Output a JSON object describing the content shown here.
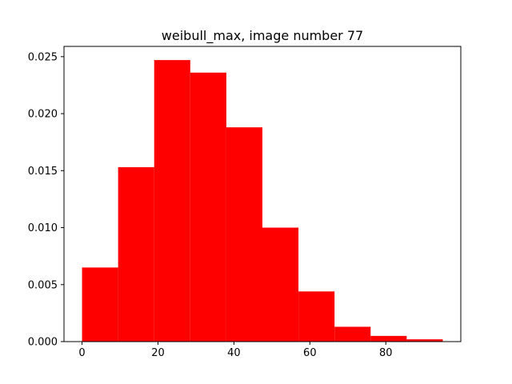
{
  "chart_data": {
    "type": "bar",
    "title": "weibull_max, image number 77",
    "xlabel": "",
    "ylabel": "",
    "bins": [
      {
        "x0": 0.0,
        "x1": 9.5,
        "value": 0.0065
      },
      {
        "x0": 9.5,
        "x1": 19.0,
        "value": 0.0153
      },
      {
        "x0": 19.0,
        "x1": 28.5,
        "value": 0.0247
      },
      {
        "x0": 28.5,
        "x1": 38.0,
        "value": 0.0236
      },
      {
        "x0": 38.0,
        "x1": 47.5,
        "value": 0.0188
      },
      {
        "x0": 47.5,
        "x1": 57.0,
        "value": 0.01
      },
      {
        "x0": 57.0,
        "x1": 66.5,
        "value": 0.0044
      },
      {
        "x0": 66.5,
        "x1": 76.0,
        "value": 0.0013
      },
      {
        "x0": 76.0,
        "x1": 85.5,
        "value": 0.0005
      },
      {
        "x0": 85.5,
        "x1": 95.0,
        "value": 0.0002
      }
    ],
    "xlim": [
      -4.75,
      99.75
    ],
    "ylim": [
      0,
      0.0259
    ],
    "xticks": [
      0,
      20,
      40,
      60,
      80
    ],
    "xtick_labels": [
      "0",
      "20",
      "40",
      "60",
      "80"
    ],
    "yticks": [
      0.0,
      0.005,
      0.01,
      0.015,
      0.02,
      0.025
    ],
    "ytick_labels": [
      "0.000",
      "0.005",
      "0.010",
      "0.015",
      "0.020",
      "0.025"
    ],
    "bar_color": "#ff0000",
    "grid": false,
    "legend": "none"
  }
}
